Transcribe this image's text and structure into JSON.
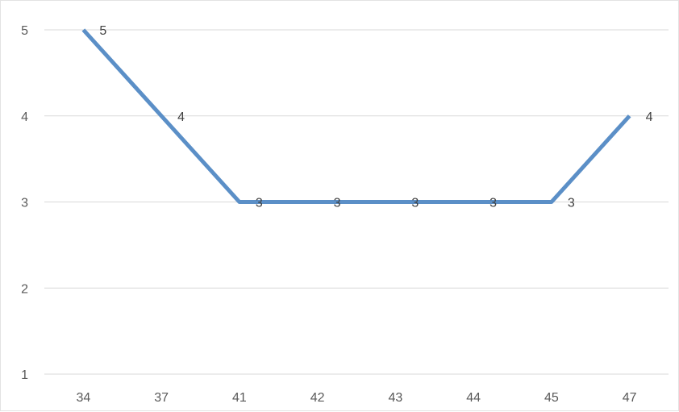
{
  "chart_data": {
    "type": "line",
    "title": "",
    "xlabel": "",
    "ylabel": "",
    "categories": [
      "34",
      "37",
      "41",
      "42",
      "43",
      "44",
      "45",
      "47"
    ],
    "series": [
      {
        "values": [
          5,
          4,
          3,
          3,
          3,
          3,
          3,
          4
        ],
        "color": "#5b8fc7"
      }
    ],
    "ylim": [
      1,
      5
    ],
    "yticks": [
      "1",
      "2",
      "3",
      "4",
      "5"
    ],
    "grid": true,
    "legend": "none",
    "data_labels": true
  }
}
